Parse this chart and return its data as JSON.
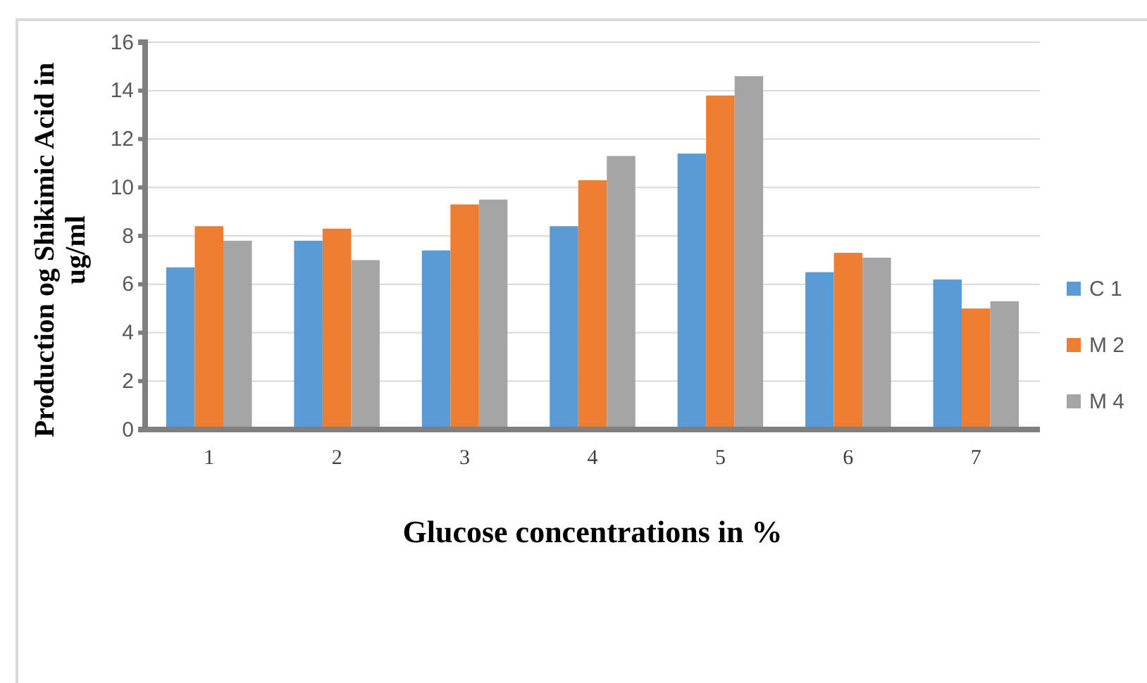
{
  "chart_data": {
    "type": "bar",
    "xlabel": "Glucose concentrations  in %",
    "ylabel": "Production og Shikimic Acid in ug/ml",
    "categories": [
      "1",
      "2",
      "3",
      "4",
      "5",
      "6",
      "7"
    ],
    "series": [
      {
        "name": "C 1",
        "color": "#5b9bd5",
        "values": [
          6.7,
          7.8,
          7.4,
          8.4,
          11.4,
          6.5,
          6.2
        ]
      },
      {
        "name": "M 2",
        "color": "#ed7d31",
        "values": [
          8.4,
          8.3,
          9.3,
          10.3,
          13.8,
          7.3,
          5.0
        ]
      },
      {
        "name": "M 4",
        "color": "#a5a5a5",
        "values": [
          7.8,
          7.0,
          9.5,
          11.3,
          14.6,
          7.1,
          5.3
        ]
      }
    ],
    "ylim": [
      0,
      16
    ],
    "yticks": [
      0,
      2,
      4,
      6,
      8,
      10,
      12,
      14,
      16
    ],
    "grid": "y",
    "legend": "right"
  }
}
